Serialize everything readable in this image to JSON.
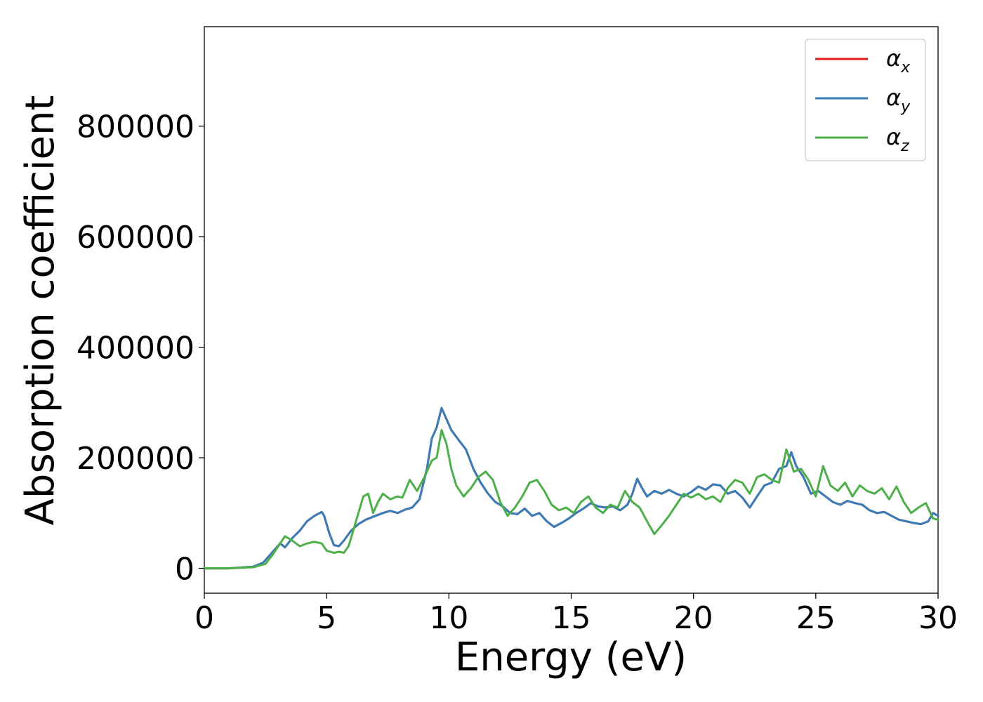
{
  "chart_data": {
    "type": "line",
    "xlabel": "Energy (eV)",
    "ylabel": "Absorption coefficient",
    "xlim": [
      0,
      30
    ],
    "ylim": [
      -45000,
      980000
    ],
    "xticks": [
      "0",
      "5",
      "10",
      "15",
      "20",
      "25",
      "30"
    ],
    "yticks": [
      "0",
      "200000",
      "400000",
      "600000",
      "800000"
    ],
    "grid": false,
    "legend_position": "top-right",
    "series": [
      {
        "name": "α_x",
        "label_main": "α",
        "label_sub": "x",
        "color": "#e41a1c",
        "x": [
          0,
          1,
          2,
          2.4,
          2.8,
          3.1,
          3.3,
          3.6,
          3.9,
          4.2,
          4.5,
          4.8,
          4.9,
          5.1,
          5.3,
          5.5,
          5.7,
          6.0,
          6.3,
          6.6,
          7.0,
          7.3,
          7.6,
          7.9,
          8.2,
          8.5,
          8.8,
          9.1,
          9.3,
          9.5,
          9.7,
          9.9,
          10.1,
          10.4,
          10.7,
          11.0,
          11.3,
          11.6,
          11.9,
          12.2,
          12.5,
          12.8,
          13.1,
          13.4,
          13.7,
          14.0,
          14.3,
          14.6,
          14.9,
          15.2,
          15.5,
          15.8,
          16.1,
          16.4,
          16.7,
          17.0,
          17.3,
          17.5,
          17.7,
          17.9,
          18.1,
          18.4,
          18.7,
          19.0,
          19.3,
          19.6,
          19.9,
          20.2,
          20.5,
          20.8,
          21.1,
          21.4,
          21.7,
          22.0,
          22.3,
          22.6,
          22.9,
          23.2,
          23.5,
          23.8,
          24.0,
          24.2,
          24.5,
          24.8,
          25.1,
          25.4,
          25.7,
          26.0,
          26.3,
          26.6,
          26.9,
          27.2,
          27.5,
          27.8,
          28.1,
          28.4,
          28.7,
          29.0,
          29.3,
          29.6,
          29.8,
          30.0
        ],
        "y": [
          0,
          0,
          3000,
          10000,
          30000,
          45000,
          38000,
          55000,
          68000,
          85000,
          95000,
          102000,
          95000,
          65000,
          42000,
          40000,
          50000,
          68000,
          80000,
          88000,
          95000,
          100000,
          104000,
          100000,
          106000,
          110000,
          125000,
          180000,
          235000,
          255000,
          290000,
          270000,
          250000,
          232000,
          215000,
          180000,
          155000,
          135000,
          120000,
          112000,
          100000,
          98000,
          108000,
          95000,
          100000,
          85000,
          75000,
          82000,
          90000,
          100000,
          108000,
          118000,
          112000,
          110000,
          112000,
          105000,
          115000,
          135000,
          162000,
          145000,
          130000,
          140000,
          135000,
          142000,
          135000,
          130000,
          138000,
          148000,
          142000,
          152000,
          150000,
          135000,
          140000,
          128000,
          110000,
          130000,
          150000,
          155000,
          180000,
          185000,
          210000,
          185000,
          165000,
          135000,
          140000,
          130000,
          120000,
          115000,
          122000,
          118000,
          115000,
          105000,
          100000,
          102000,
          95000,
          88000,
          85000,
          82000,
          80000,
          85000,
          100000,
          95000
        ]
      },
      {
        "name": "α_y",
        "label_main": "α",
        "label_sub": "y",
        "color": "#377eb8",
        "x": [
          0,
          1,
          2,
          2.4,
          2.8,
          3.1,
          3.3,
          3.6,
          3.9,
          4.2,
          4.5,
          4.8,
          4.9,
          5.1,
          5.3,
          5.5,
          5.7,
          6.0,
          6.3,
          6.6,
          7.0,
          7.3,
          7.6,
          7.9,
          8.2,
          8.5,
          8.8,
          9.1,
          9.3,
          9.5,
          9.7,
          9.9,
          10.1,
          10.4,
          10.7,
          11.0,
          11.3,
          11.6,
          11.9,
          12.2,
          12.5,
          12.8,
          13.1,
          13.4,
          13.7,
          14.0,
          14.3,
          14.6,
          14.9,
          15.2,
          15.5,
          15.8,
          16.1,
          16.4,
          16.7,
          17.0,
          17.3,
          17.5,
          17.7,
          17.9,
          18.1,
          18.4,
          18.7,
          19.0,
          19.3,
          19.6,
          19.9,
          20.2,
          20.5,
          20.8,
          21.1,
          21.4,
          21.7,
          22.0,
          22.3,
          22.6,
          22.9,
          23.2,
          23.5,
          23.8,
          24.0,
          24.2,
          24.5,
          24.8,
          25.1,
          25.4,
          25.7,
          26.0,
          26.3,
          26.6,
          26.9,
          27.2,
          27.5,
          27.8,
          28.1,
          28.4,
          28.7,
          29.0,
          29.3,
          29.6,
          29.8,
          30.0
        ],
        "y": [
          0,
          0,
          3000,
          10000,
          30000,
          45000,
          38000,
          55000,
          68000,
          85000,
          95000,
          102000,
          95000,
          65000,
          42000,
          40000,
          50000,
          68000,
          80000,
          88000,
          95000,
          100000,
          104000,
          100000,
          106000,
          110000,
          125000,
          180000,
          235000,
          255000,
          290000,
          270000,
          250000,
          232000,
          215000,
          180000,
          155000,
          135000,
          120000,
          112000,
          100000,
          98000,
          108000,
          95000,
          100000,
          85000,
          75000,
          82000,
          90000,
          100000,
          108000,
          118000,
          112000,
          110000,
          112000,
          105000,
          115000,
          135000,
          162000,
          145000,
          130000,
          140000,
          135000,
          142000,
          135000,
          130000,
          138000,
          148000,
          142000,
          152000,
          150000,
          135000,
          140000,
          128000,
          110000,
          130000,
          150000,
          155000,
          180000,
          185000,
          210000,
          185000,
          165000,
          135000,
          140000,
          130000,
          120000,
          115000,
          122000,
          118000,
          115000,
          105000,
          100000,
          102000,
          95000,
          88000,
          85000,
          82000,
          80000,
          85000,
          100000,
          95000
        ]
      },
      {
        "name": "α_z",
        "label_main": "α",
        "label_sub": "z",
        "color": "#4daf4a",
        "x": [
          0,
          1,
          2,
          2.5,
          2.8,
          3.1,
          3.3,
          3.6,
          3.9,
          4.2,
          4.5,
          4.8,
          5.0,
          5.3,
          5.5,
          5.7,
          5.9,
          6.2,
          6.5,
          6.7,
          6.9,
          7.1,
          7.3,
          7.6,
          7.9,
          8.1,
          8.4,
          8.7,
          9.0,
          9.3,
          9.5,
          9.7,
          9.9,
          10.1,
          10.3,
          10.6,
          10.9,
          11.2,
          11.5,
          11.8,
          12.1,
          12.4,
          12.7,
          13.0,
          13.3,
          13.6,
          13.9,
          14.2,
          14.5,
          14.8,
          15.1,
          15.4,
          15.7,
          16.0,
          16.3,
          16.6,
          16.9,
          17.2,
          17.5,
          17.8,
          18.1,
          18.4,
          18.7,
          19.0,
          19.3,
          19.6,
          19.9,
          20.2,
          20.5,
          20.8,
          21.1,
          21.4,
          21.7,
          22.0,
          22.3,
          22.6,
          22.9,
          23.2,
          23.5,
          23.8,
          24.1,
          24.4,
          24.7,
          25.0,
          25.3,
          25.6,
          25.9,
          26.2,
          26.5,
          26.8,
          27.1,
          27.4,
          27.7,
          28.0,
          28.3,
          28.6,
          28.9,
          29.2,
          29.5,
          29.8,
          30.0
        ],
        "y": [
          0,
          0,
          2000,
          8000,
          25000,
          45000,
          58000,
          50000,
          40000,
          45000,
          48000,
          45000,
          32000,
          28000,
          30000,
          28000,
          40000,
          85000,
          130000,
          135000,
          100000,
          120000,
          135000,
          125000,
          130000,
          128000,
          160000,
          140000,
          165000,
          195000,
          200000,
          250000,
          225000,
          180000,
          150000,
          130000,
          145000,
          165000,
          175000,
          160000,
          120000,
          95000,
          110000,
          130000,
          155000,
          160000,
          140000,
          115000,
          105000,
          110000,
          100000,
          120000,
          130000,
          110000,
          100000,
          115000,
          110000,
          140000,
          120000,
          110000,
          85000,
          62000,
          78000,
          95000,
          115000,
          135000,
          128000,
          135000,
          125000,
          130000,
          120000,
          145000,
          160000,
          155000,
          135000,
          165000,
          170000,
          160000,
          155000,
          215000,
          175000,
          180000,
          160000,
          130000,
          185000,
          150000,
          140000,
          155000,
          130000,
          150000,
          140000,
          135000,
          145000,
          125000,
          148000,
          120000,
          100000,
          110000,
          118000,
          90000,
          88000
        ]
      }
    ]
  }
}
